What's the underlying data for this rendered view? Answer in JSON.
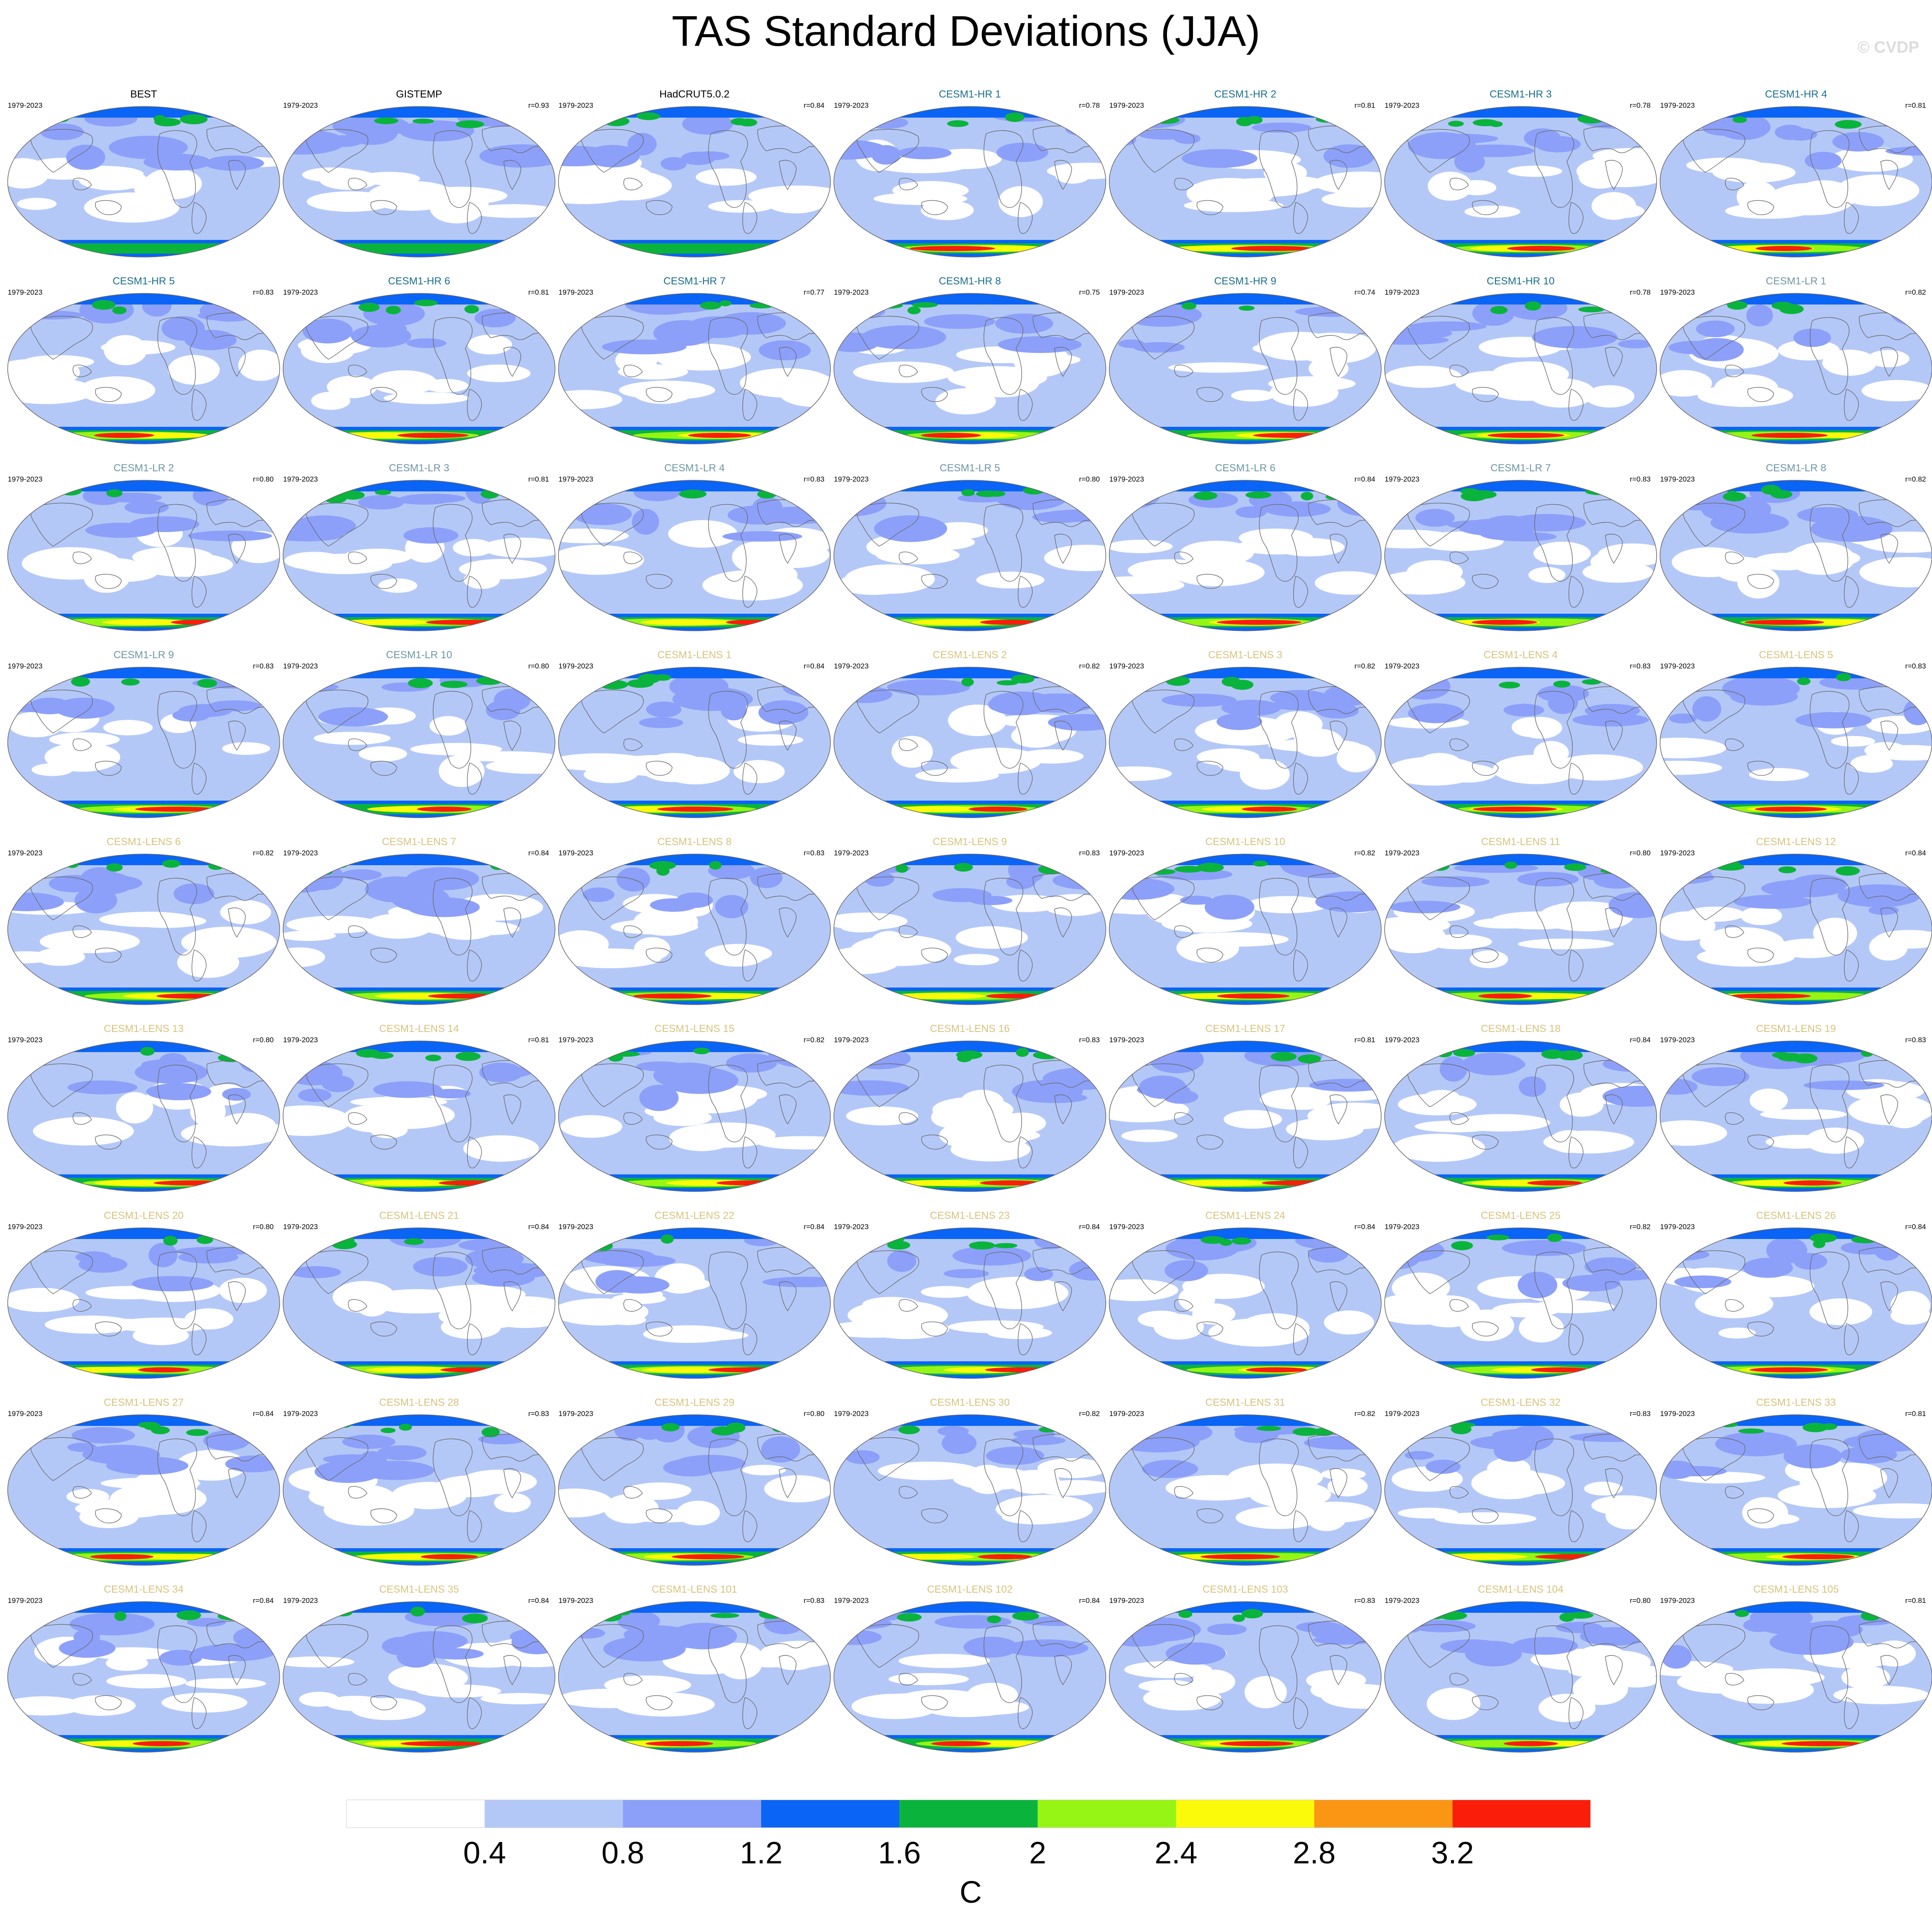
{
  "title": "TAS Standard Deviations (JJA)",
  "watermark": "© CVDP",
  "period": "1979-2023",
  "colors": {
    "observations_title": "#000000",
    "cesm1_hr_title": "#1a6e8c",
    "cesm1_lr_title": "#6e96a5",
    "cesm1_lens_title": "#d9c27e"
  },
  "panels": [
    {
      "title": "BEST",
      "group": "obs",
      "r": ""
    },
    {
      "title": "GISTEMP",
      "group": "obs",
      "r": "r=0.93"
    },
    {
      "title": "HadCRUT5.0.2",
      "group": "obs",
      "r": "r=0.84"
    },
    {
      "title": "CESM1-HR 1",
      "group": "hr",
      "r": "r=0.78"
    },
    {
      "title": "CESM1-HR 2",
      "group": "hr",
      "r": "r=0.81"
    },
    {
      "title": "CESM1-HR 3",
      "group": "hr",
      "r": "r=0.78"
    },
    {
      "title": "CESM1-HR 4",
      "group": "hr",
      "r": "r=0.81"
    },
    {
      "title": "CESM1-HR 5",
      "group": "hr",
      "r": "r=0.83"
    },
    {
      "title": "CESM1-HR 6",
      "group": "hr",
      "r": "r=0.81"
    },
    {
      "title": "CESM1-HR 7",
      "group": "hr",
      "r": "r=0.77"
    },
    {
      "title": "CESM1-HR 8",
      "group": "hr",
      "r": "r=0.75"
    },
    {
      "title": "CESM1-HR 9",
      "group": "hr",
      "r": "r=0.74"
    },
    {
      "title": "CESM1-HR 10",
      "group": "hr",
      "r": "r=0.78"
    },
    {
      "title": "CESM1-LR 1",
      "group": "lr",
      "r": "r=0.82"
    },
    {
      "title": "CESM1-LR 2",
      "group": "lr",
      "r": "r=0.80"
    },
    {
      "title": "CESM1-LR 3",
      "group": "lr",
      "r": "r=0.81"
    },
    {
      "title": "CESM1-LR 4",
      "group": "lr",
      "r": "r=0.83"
    },
    {
      "title": "CESM1-LR 5",
      "group": "lr",
      "r": "r=0.80"
    },
    {
      "title": "CESM1-LR 6",
      "group": "lr",
      "r": "r=0.84"
    },
    {
      "title": "CESM1-LR 7",
      "group": "lr",
      "r": "r=0.83"
    },
    {
      "title": "CESM1-LR 8",
      "group": "lr",
      "r": "r=0.82"
    },
    {
      "title": "CESM1-LR 9",
      "group": "lr",
      "r": "r=0.83"
    },
    {
      "title": "CESM1-LR 10",
      "group": "lr",
      "r": "r=0.80"
    },
    {
      "title": "CESM1-LENS 1",
      "group": "lens",
      "r": "r=0.84"
    },
    {
      "title": "CESM1-LENS 2",
      "group": "lens",
      "r": "r=0.82"
    },
    {
      "title": "CESM1-LENS 3",
      "group": "lens",
      "r": "r=0.82"
    },
    {
      "title": "CESM1-LENS 4",
      "group": "lens",
      "r": "r=0.83"
    },
    {
      "title": "CESM1-LENS 5",
      "group": "lens",
      "r": "r=0.83"
    },
    {
      "title": "CESM1-LENS 6",
      "group": "lens",
      "r": "r=0.82"
    },
    {
      "title": "CESM1-LENS 7",
      "group": "lens",
      "r": "r=0.84"
    },
    {
      "title": "CESM1-LENS 8",
      "group": "lens",
      "r": "r=0.83"
    },
    {
      "title": "CESM1-LENS 9",
      "group": "lens",
      "r": "r=0.83"
    },
    {
      "title": "CESM1-LENS 10",
      "group": "lens",
      "r": "r=0.82"
    },
    {
      "title": "CESM1-LENS 11",
      "group": "lens",
      "r": "r=0.80"
    },
    {
      "title": "CESM1-LENS 12",
      "group": "lens",
      "r": "r=0.84"
    },
    {
      "title": "CESM1-LENS 13",
      "group": "lens",
      "r": "r=0.80"
    },
    {
      "title": "CESM1-LENS 14",
      "group": "lens",
      "r": "r=0.81"
    },
    {
      "title": "CESM1-LENS 15",
      "group": "lens",
      "r": "r=0.82"
    },
    {
      "title": "CESM1-LENS 16",
      "group": "lens",
      "r": "r=0.83"
    },
    {
      "title": "CESM1-LENS 17",
      "group": "lens",
      "r": "r=0.81"
    },
    {
      "title": "CESM1-LENS 18",
      "group": "lens",
      "r": "r=0.84"
    },
    {
      "title": "CESM1-LENS 19",
      "group": "lens",
      "r": "r=0.83"
    },
    {
      "title": "CESM1-LENS 20",
      "group": "lens",
      "r": "r=0.80"
    },
    {
      "title": "CESM1-LENS 21",
      "group": "lens",
      "r": "r=0.84"
    },
    {
      "title": "CESM1-LENS 22",
      "group": "lens",
      "r": "r=0.84"
    },
    {
      "title": "CESM1-LENS 23",
      "group": "lens",
      "r": "r=0.84"
    },
    {
      "title": "CESM1-LENS 24",
      "group": "lens",
      "r": "r=0.84"
    },
    {
      "title": "CESM1-LENS 25",
      "group": "lens",
      "r": "r=0.82"
    },
    {
      "title": "CESM1-LENS 26",
      "group": "lens",
      "r": "r=0.84"
    },
    {
      "title": "CESM1-LENS 27",
      "group": "lens",
      "r": "r=0.84"
    },
    {
      "title": "CESM1-LENS 28",
      "group": "lens",
      "r": "r=0.83"
    },
    {
      "title": "CESM1-LENS 29",
      "group": "lens",
      "r": "r=0.80"
    },
    {
      "title": "CESM1-LENS 30",
      "group": "lens",
      "r": "r=0.82"
    },
    {
      "title": "CESM1-LENS 31",
      "group": "lens",
      "r": "r=0.82"
    },
    {
      "title": "CESM1-LENS 32",
      "group": "lens",
      "r": "r=0.83"
    },
    {
      "title": "CESM1-LENS 33",
      "group": "lens",
      "r": "r=0.81"
    },
    {
      "title": "CESM1-LENS 34",
      "group": "lens",
      "r": "r=0.84"
    },
    {
      "title": "CESM1-LENS 35",
      "group": "lens",
      "r": "r=0.84"
    },
    {
      "title": "CESM1-LENS 101",
      "group": "lens",
      "r": "r=0.83"
    },
    {
      "title": "CESM1-LENS 102",
      "group": "lens",
      "r": "r=0.84"
    },
    {
      "title": "CESM1-LENS 103",
      "group": "lens",
      "r": "r=0.83"
    },
    {
      "title": "CESM1-LENS 104",
      "group": "lens",
      "r": "r=0.80"
    },
    {
      "title": "CESM1-LENS 105",
      "group": "lens",
      "r": "r=0.81"
    }
  ],
  "chart_data": {
    "type": "heatmap",
    "title": "TAS Standard Deviations (JJA)",
    "units": "C",
    "colorbar": {
      "levels": [
        0.4,
        0.8,
        1.2,
        1.6,
        2,
        2.4,
        2.8,
        3.2
      ],
      "tick_labels": [
        "0.4",
        "0.8",
        "1.2",
        "1.6",
        "2",
        "2.4",
        "2.8",
        "3.2"
      ],
      "colors": [
        "#ffffff",
        "#b4c8f8",
        "#8ca0fa",
        "#0a64f5",
        "#0ab43c",
        "#96f514",
        "#fafa0a",
        "#fa9614",
        "#fa1e0a"
      ]
    },
    "layout": {
      "columns": 7,
      "rows": 9,
      "projection": "Robinson"
    }
  }
}
